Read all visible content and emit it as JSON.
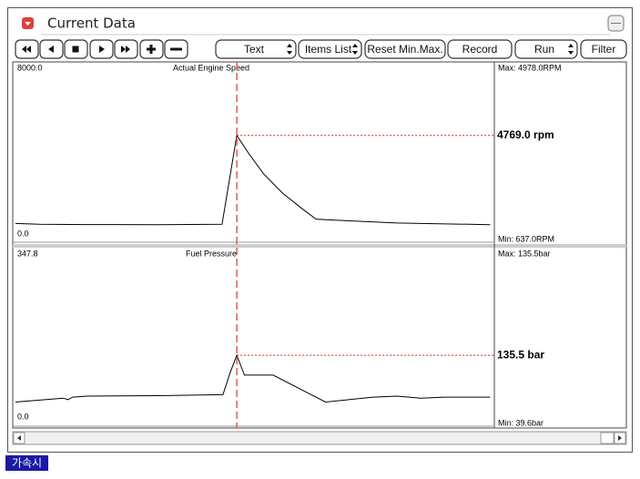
{
  "window": {
    "title": "Current Data"
  },
  "toolbar": {
    "buttons": [
      "Text",
      "Items List",
      "Reset Min.Max.",
      "Record",
      "Run",
      "Filter"
    ]
  },
  "chart_data": [
    {
      "type": "line",
      "title": "Actual Engine Speed",
      "color": "#000000",
      "x": [
        0,
        5,
        15,
        30,
        43.3,
        46.4,
        49,
        52,
        56,
        60,
        63,
        67,
        80,
        95,
        99.5
      ],
      "values": [
        700,
        660,
        650,
        640,
        660,
        4769,
        3900,
        3000,
        2100,
        1400,
        900,
        850,
        720,
        660,
        640
      ],
      "xlim": [
        0,
        100
      ],
      "ylim": [
        0,
        8000
      ],
      "yticks": [
        {
          "value": 0,
          "label": "0.0"
        },
        {
          "value": 8000,
          "label": "8000.0"
        }
      ],
      "cursor_x": 46.4,
      "cursor_value": 4769,
      "cursor_label": "4769.0 rpm",
      "max_label": "Max: 4978.0RPM",
      "min_label": "Min:  637.0RPM"
    },
    {
      "type": "line",
      "title": "Fuel Pressure",
      "color": "#000000",
      "x": [
        0,
        10,
        11,
        12,
        15,
        30,
        43.5,
        45,
        46.4,
        48,
        54,
        62,
        65,
        70,
        75,
        80,
        85,
        90,
        99.5
      ],
      "values": [
        40,
        48,
        45,
        50,
        52,
        53,
        55,
        100,
        135.5,
        95,
        95,
        55,
        40,
        45,
        50,
        52,
        48,
        50,
        50
      ],
      "xlim": [
        0,
        100
      ],
      "ylim": [
        0,
        347.8
      ],
      "yticks": [
        {
          "value": 0,
          "label": "0.0"
        },
        347.8
      ],
      "cursor_x": 46.4,
      "cursor_value": 135.5,
      "cursor_label": "135.5 bar",
      "max_label": "Max: 135.5bar",
      "min_label": "Min:  39.6bar"
    }
  ],
  "status": {
    "label": "가속시"
  }
}
